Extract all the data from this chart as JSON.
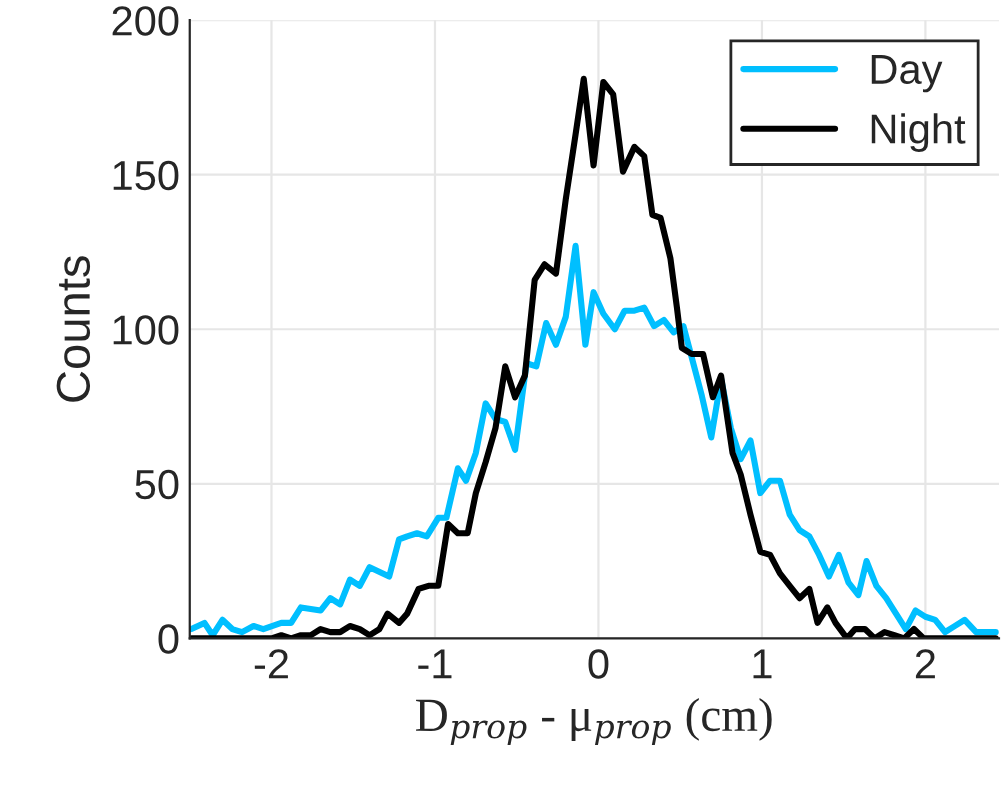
{
  "chart_data": {
    "type": "line",
    "xlabel": "D$_{prop}$ - μ$_{prop}$ (cm)",
    "ylabel": "Counts",
    "xlim": [
      -2.5,
      2.45
    ],
    "xticks": [
      {
        "value": -2,
        "label": "-2"
      },
      {
        "value": -1,
        "label": "-1"
      },
      0,
      1,
      2
    ],
    "ylim": [
      0,
      200
    ],
    "yticks": [
      0,
      50,
      100,
      150,
      200
    ],
    "grid": true,
    "legend": "top right",
    "series": [
      {
        "name": "Day",
        "color": "#00bfff",
        "x": [
          -2.49,
          -2.41,
          -2.36,
          -2.3,
          -2.24,
          -2.18,
          -2.11,
          -2.05,
          -1.94,
          -1.88,
          -1.82,
          -1.7,
          -1.64,
          -1.58,
          -1.52,
          -1.46,
          -1.4,
          -1.28,
          -1.22,
          -1.17,
          -1.11,
          -1.05,
          -0.98,
          -0.93,
          -0.86,
          -0.81,
          -0.75,
          -0.69,
          -0.63,
          -0.57,
          -0.51,
          -0.44,
          -0.38,
          -0.32,
          -0.26,
          -0.2,
          -0.14,
          -0.08,
          -0.03,
          0.03,
          0.1,
          0.16,
          0.22,
          0.28,
          0.34,
          0.4,
          0.46,
          0.52,
          0.56,
          0.63,
          0.69,
          0.75,
          0.81,
          0.87,
          0.93,
          0.99,
          1.05,
          1.11,
          1.17,
          1.23,
          1.29,
          1.35,
          1.41,
          1.47,
          1.53,
          1.59,
          1.64,
          1.7,
          1.76,
          1.82,
          1.88,
          1.94,
          2.0,
          2.06,
          2.12,
          2.18,
          2.24,
          2.31,
          2.37,
          2.43
        ],
        "values": [
          3,
          5,
          1,
          6,
          3,
          2,
          4,
          3,
          5,
          5,
          10,
          9,
          13,
          11,
          19,
          17,
          23,
          20,
          32,
          33,
          34,
          33,
          39,
          39,
          55,
          51,
          60,
          76,
          71,
          70,
          61,
          89,
          88,
          102,
          95,
          104,
          127,
          95,
          112,
          105,
          100,
          106,
          106,
          107,
          101,
          103,
          99,
          101,
          93,
          79,
          65,
          84,
          68,
          58,
          64,
          47,
          51,
          51,
          40,
          35,
          33,
          27,
          20,
          27,
          18,
          14,
          25,
          17,
          13,
          8,
          3,
          9,
          7,
          6,
          2,
          4,
          6,
          2,
          2,
          2
        ]
      },
      {
        "name": "Night",
        "color": "#000000",
        "x": [
          -2.49,
          -2.3,
          -2.11,
          -2.0,
          -1.94,
          -1.88,
          -1.82,
          -1.76,
          -1.7,
          -1.64,
          -1.58,
          -1.52,
          -1.46,
          -1.4,
          -1.34,
          -1.29,
          -1.22,
          -1.17,
          -1.1,
          -1.04,
          -0.98,
          -0.92,
          -0.86,
          -0.8,
          -0.75,
          -0.69,
          -0.63,
          -0.57,
          -0.51,
          -0.45,
          -0.39,
          -0.33,
          -0.26,
          -0.2,
          -0.14,
          -0.09,
          -0.03,
          0.03,
          0.09,
          0.15,
          0.22,
          0.28,
          0.33,
          0.38,
          0.44,
          0.48,
          0.51,
          0.57,
          0.64,
          0.7,
          0.75,
          0.82,
          0.87,
          0.93,
          0.99,
          1.05,
          1.11,
          1.17,
          1.23,
          1.29,
          1.34,
          1.4,
          1.45,
          1.52,
          1.57,
          1.63,
          1.69,
          1.75,
          1.81,
          1.87,
          1.93,
          1.99,
          2.2,
          2.43
        ],
        "values": [
          0,
          0,
          0,
          0,
          1,
          0,
          1,
          1,
          3,
          2,
          2,
          4,
          3,
          1,
          3,
          8,
          5,
          8,
          16,
          17,
          17,
          37,
          34,
          34,
          47,
          57,
          68,
          88,
          78,
          85,
          116,
          121,
          118,
          142,
          163,
          181,
          153,
          180,
          176,
          151,
          159,
          156,
          137,
          136,
          123,
          107,
          94,
          92,
          92,
          78,
          85,
          60,
          53,
          40,
          28,
          27,
          21,
          17,
          13,
          16,
          5,
          10,
          5,
          0,
          3,
          3,
          0,
          2,
          1,
          0,
          3,
          0,
          0,
          0
        ]
      }
    ]
  }
}
